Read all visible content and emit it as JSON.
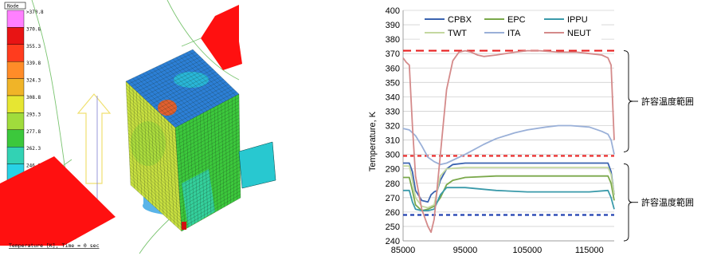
{
  "fem_view": {
    "legend_title": "Node",
    "colorbar_labels": [
      ">370.8",
      "370.8",
      "355.3",
      "339.8",
      "324.3",
      "308.8",
      "293.3",
      "277.8",
      "262.3",
      "246.8",
      "231.3",
      "215.8",
      "<215.8"
    ],
    "colorbar_colors": [
      "#ff80ff",
      "#e81414",
      "#ff3c1e",
      "#ff8c28",
      "#f0b428",
      "#e6e632",
      "#a0dc3c",
      "#3cc83c",
      "#32d2b4",
      "#28d2e6",
      "#1ea0dc",
      "#1450c8",
      "#1e1450"
    ],
    "caption": "Temperature [K], Time = 0 sec"
  },
  "chart_data": {
    "type": "line",
    "ylabel": "Temperature, K",
    "xlabel": "",
    "xlim": [
      85000,
      119000
    ],
    "ylim": [
      240,
      400
    ],
    "xticks": [
      "85000",
      "95000",
      "105000",
      "115000"
    ],
    "yticks": [
      "240",
      "250",
      "260",
      "270",
      "280",
      "290",
      "300",
      "310",
      "320",
      "330",
      "340",
      "350",
      "360",
      "370",
      "380",
      "390",
      "400"
    ],
    "grid": true,
    "legend_position": "top",
    "series": [
      {
        "name": "CPBX",
        "color": "#3a63b0",
        "x": [
          85000,
          86000,
          86500,
          87000,
          88000,
          89000,
          89500,
          90000,
          90500,
          91000,
          92000,
          93000,
          95000,
          100000,
          105000,
          110000,
          115000,
          118000,
          118500,
          119000
        ],
        "y": [
          294,
          294,
          288,
          275,
          268,
          267,
          272,
          274,
          275,
          282,
          290,
          293,
          294,
          294,
          294,
          294,
          294,
          294,
          288,
          272
        ]
      },
      {
        "name": "EPC",
        "color": "#7aa84a",
        "x": [
          85000,
          86000,
          86500,
          87000,
          88000,
          89000,
          90000,
          91000,
          92000,
          93000,
          95000,
          100000,
          105000,
          110000,
          115000,
          118000,
          118500,
          119000
        ],
        "y": [
          284,
          284,
          275,
          265,
          261,
          262,
          264,
          270,
          279,
          282,
          284,
          285,
          285,
          285,
          285,
          285,
          280,
          268
        ]
      },
      {
        "name": "IPPU",
        "color": "#3a9aaa",
        "x": [
          85000,
          86000,
          86500,
          87000,
          88000,
          89000,
          90000,
          91000,
          92000,
          95000,
          100000,
          105000,
          110000,
          115000,
          118000,
          118500,
          119000
        ],
        "y": [
          275,
          275,
          267,
          262,
          261,
          261,
          262,
          272,
          277,
          277,
          275,
          274,
          274,
          274,
          275,
          270,
          262
        ]
      },
      {
        "name": "TWT",
        "color": "#c4d8a0",
        "x": [
          85000,
          86000,
          86500,
          87000,
          88000,
          89000,
          90000,
          91000,
          92000,
          95000,
          100000,
          105000,
          110000,
          115000,
          118000,
          118500,
          119000
        ],
        "y": [
          292,
          292,
          282,
          270,
          264,
          263,
          265,
          285,
          290,
          291,
          291,
          291,
          291,
          291,
          291,
          286,
          272
        ]
      },
      {
        "name": "ITA",
        "color": "#9ab0d8",
        "x": [
          85000,
          86000,
          87000,
          88000,
          89000,
          90000,
          91000,
          92000,
          95000,
          98000,
          100000,
          103000,
          105000,
          108000,
          110000,
          112000,
          115000,
          117000,
          118000,
          118500,
          119000
        ],
        "y": [
          318,
          317,
          313,
          306,
          298,
          295,
          293,
          294,
          300,
          307,
          311,
          315,
          317,
          319,
          320,
          320,
          319,
          316,
          314,
          310,
          300
        ]
      },
      {
        "name": "NEUT",
        "color": "#d48a8a",
        "x": [
          85000,
          85500,
          86000,
          86500,
          87000,
          88000,
          89000,
          89500,
          90000,
          91000,
          92000,
          93000,
          94000,
          95000,
          96000,
          97000,
          98000,
          100000,
          103000,
          105000,
          107000,
          110000,
          113000,
          115000,
          117000,
          118000,
          118500,
          119000
        ],
        "y": [
          367,
          364,
          362,
          320,
          285,
          262,
          250,
          246,
          255,
          300,
          345,
          365,
          371,
          372,
          371,
          369,
          368,
          369,
          371,
          372,
          372,
          371,
          371,
          370,
          369,
          367,
          362,
          310
        ]
      }
    ],
    "reference_lines": [
      {
        "y": 372,
        "color": "#e82020",
        "style": "long-dash"
      },
      {
        "y": 299,
        "color": "#e82020",
        "style": "short-dash"
      },
      {
        "y": 258,
        "color": "#2040b0",
        "style": "short-dash"
      }
    ],
    "annotations": [
      {
        "text": "許容温度範囲",
        "range": [
          299,
          372
        ]
      },
      {
        "text": "許容温度範囲",
        "range": [
          240,
          299
        ]
      }
    ]
  }
}
